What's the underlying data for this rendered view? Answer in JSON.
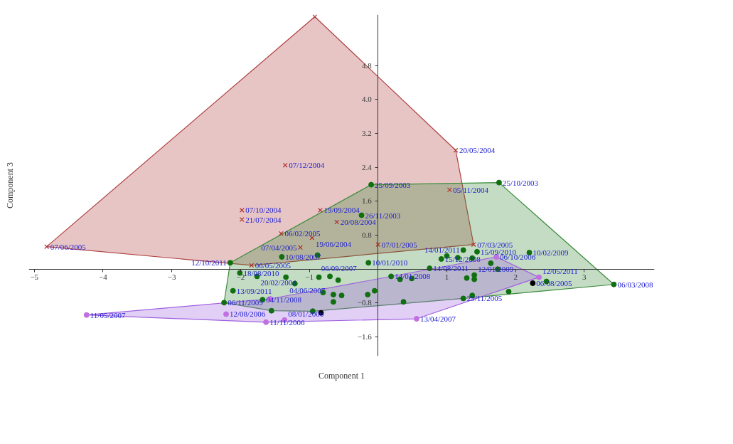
{
  "chart_data": {
    "type": "scatter",
    "xlabel": "Component 1",
    "ylabel": "Component 3",
    "xlim": [
      -5.08,
      4.02
    ],
    "ylim": [
      -2.05,
      6.0
    ],
    "xticks": [
      -5,
      -4,
      -3,
      -2,
      -1,
      1,
      2,
      3
    ],
    "yticks": [
      -1.6,
      -0.8,
      0.8,
      1.6,
      2.4,
      3.2,
      {
        "value": 4.0,
        "label": "4.0"
      },
      4.8
    ],
    "series": [
      {
        "type": "area",
        "color": "#b04040",
        "x": [
          -4.82,
          -0.92,
          1.13,
          1.39,
          -1.84
        ],
        "values": [
          0.53,
          5.95,
          2.8,
          0.58,
          0.09
        ]
      },
      {
        "type": "area",
        "color": "#3c8c3c",
        "x": [
          -2.24,
          -2.15,
          -0.1,
          1.76,
          3.43,
          1.24,
          -0.95,
          -1.55
        ],
        "values": [
          -0.79,
          0.15,
          1.99,
          2.04,
          -0.36,
          -0.69,
          -0.99,
          -0.98
        ]
      },
      {
        "type": "area",
        "color": "#a060e0",
        "x": [
          -4.24,
          -1.57,
          1.72,
          2.34,
          0.56,
          -1.63
        ],
        "values": [
          -1.08,
          -0.7,
          0.29,
          -0.19,
          -1.17,
          -1.25
        ]
      },
      {
        "marker": "cross",
        "color": "#b03030",
        "x": [
          -0.92,
          -4.82,
          -1.35,
          1.13,
          1.04,
          1.39,
          -1.98,
          -1.98,
          -0.84,
          -0.6,
          -1.41,
          -0.96,
          -1.13,
          -1.84,
          0.0
        ],
        "values": [
          5.95,
          0.53,
          2.45,
          2.8,
          1.87,
          0.58,
          1.39,
          1.17,
          1.39,
          1.11,
          0.84,
          0.74,
          0.51,
          0.09,
          0.58
        ]
      },
      {
        "marker": "circle",
        "color": "#107010",
        "x": [
          -2.15,
          -0.1,
          1.76,
          -0.24,
          -1.4,
          -0.88,
          -0.14,
          1.24,
          1.44,
          2.2,
          3.43,
          -2.24,
          -2.11,
          -2.01,
          -1.76,
          -1.34,
          -1.68,
          -1.55,
          0.19,
          0.32,
          0.49,
          0.75,
          0.92,
          1.0,
          1.16,
          1.37,
          1.64,
          1.74,
          1.4,
          1.29,
          1.4,
          -0.8,
          -0.65,
          -0.53,
          -0.15,
          -0.05,
          0.37,
          -0.65,
          -0.95,
          -1.21,
          -0.86,
          -0.7,
          -0.58,
          2.45,
          1.9,
          1.24,
          1.37
        ],
        "values": [
          0.15,
          1.99,
          2.04,
          1.27,
          0.29,
          0.33,
          0.15,
          0.45,
          0.41,
          0.39,
          -0.36,
          -0.79,
          -0.51,
          -0.09,
          -0.17,
          -0.19,
          -0.72,
          -0.98,
          -0.17,
          -0.24,
          -0.22,
          0.02,
          0.24,
          0.31,
          0.27,
          0.26,
          0.14,
          0.0,
          -0.14,
          -0.21,
          -0.24,
          -0.55,
          -0.6,
          -0.62,
          -0.6,
          -0.51,
          -0.77,
          -0.77,
          -0.99,
          -0.34,
          -0.19,
          -0.17,
          -0.26,
          -0.29,
          -0.53,
          -0.69,
          -0.62
        ]
      },
      {
        "marker": "circle",
        "color": "#c070e0",
        "x": [
          -4.24,
          -2.21,
          -1.63,
          -1.36,
          0.56,
          -1.57,
          2.34,
          1.72
        ],
        "values": [
          -1.08,
          -1.06,
          -1.25,
          -1.2,
          -1.17,
          -0.7,
          -0.19,
          0.29
        ]
      },
      {
        "marker": "circle",
        "color": "#000000",
        "x": [
          2.25,
          -0.83
        ],
        "values": [
          -0.33,
          -1.03
        ]
      }
    ],
    "annotations": [
      {
        "text": "07/06/2005",
        "x": -4.82,
        "y": 0.53
      },
      {
        "text": "07/12/2004",
        "x": -1.35,
        "y": 2.45
      },
      {
        "text": "20/05/2004",
        "x": 1.13,
        "y": 2.8
      },
      {
        "text": "05/11/2004",
        "x": 1.04,
        "y": 1.87
      },
      {
        "text": "07/03/2005",
        "x": 1.39,
        "y": 0.58
      },
      {
        "text": "07/10/2004",
        "x": -1.98,
        "y": 1.39
      },
      {
        "text": "21/07/2004",
        "x": -1.98,
        "y": 1.17
      },
      {
        "text": "19/09/2004",
        "x": -0.84,
        "y": 1.39
      },
      {
        "text": "20/08/2004",
        "x": -0.6,
        "y": 1.11
      },
      {
        "text": "06/02/2005",
        "x": -1.41,
        "y": 0.84
      },
      {
        "text": "19/06/2004",
        "x": -0.96,
        "y": 0.74
      },
      {
        "text": "07/04/2005",
        "x": -1.13,
        "y": 0.51
      },
      {
        "text": "06/05/2005",
        "x": -1.84,
        "y": 0.09
      },
      {
        "text": "07/01/2005",
        "x": 0.0,
        "y": 0.58
      },
      {
        "text": "25/09/2003",
        "x": -0.1,
        "y": 1.99
      },
      {
        "text": "25/10/2003",
        "x": 1.76,
        "y": 2.04
      },
      {
        "text": "26/11/2003",
        "x": -0.24,
        "y": 1.27
      },
      {
        "text": "12/10/2011",
        "x": -2.15,
        "y": 0.15
      },
      {
        "text": "10/08/2007",
        "x": -1.4,
        "y": 0.29
      },
      {
        "text": "06/09/2007",
        "x": -0.88,
        "y": 0.33
      },
      {
        "text": "10/01/2010",
        "x": -0.14,
        "y": 0.15
      },
      {
        "text": "14/01/2011",
        "x": 1.24,
        "y": 0.45
      },
      {
        "text": "15/09/2010",
        "x": 1.44,
        "y": 0.41
      },
      {
        "text": "10/02/2009",
        "x": 2.2,
        "y": 0.39
      },
      {
        "text": "06/03/2008",
        "x": 3.43,
        "y": -0.36
      },
      {
        "text": "06/11/2009",
        "x": -2.24,
        "y": -0.79
      },
      {
        "text": "13/09/2011",
        "x": -2.11,
        "y": -0.51
      },
      {
        "text": "18/08/2010",
        "x": -2.01,
        "y": -0.09
      },
      {
        "text": "20/02/2004",
        "x": -1.76,
        "y": -0.17
      },
      {
        "text": "04/06/2007",
        "x": -1.34,
        "y": -0.19
      },
      {
        "text": "04/11/2008",
        "x": -1.68,
        "y": -0.72
      },
      {
        "text": "14/01/2008",
        "x": 0.19,
        "y": -0.17
      },
      {
        "text": "15/12/2008",
        "x": 0.92,
        "y": 0.24
      },
      {
        "text": "14/08/2011",
        "x": 0.75,
        "y": 0.02
      },
      {
        "text": "12/01/2009",
        "x": 1.4,
        "y": -0.14
      },
      {
        "text": "29/11/2005",
        "x": 1.24,
        "y": -0.69
      },
      {
        "text": "06/08/2005",
        "x": 2.25,
        "y": -0.33
      },
      {
        "text": "12/05/2011",
        "x": 2.34,
        "y": -0.19
      },
      {
        "text": "06/10/2006",
        "x": 1.72,
        "y": 0.29
      },
      {
        "text": "11/05/2007",
        "x": -4.24,
        "y": -1.08
      },
      {
        "text": "12/08/2006",
        "x": -2.21,
        "y": -1.06
      },
      {
        "text": "11/11/2006",
        "x": -1.63,
        "y": -1.25
      },
      {
        "text": "08/01/2006",
        "x": -1.36,
        "y": -1.2
      },
      {
        "text": "13/04/2007",
        "x": 0.56,
        "y": -1.17
      }
    ]
  }
}
